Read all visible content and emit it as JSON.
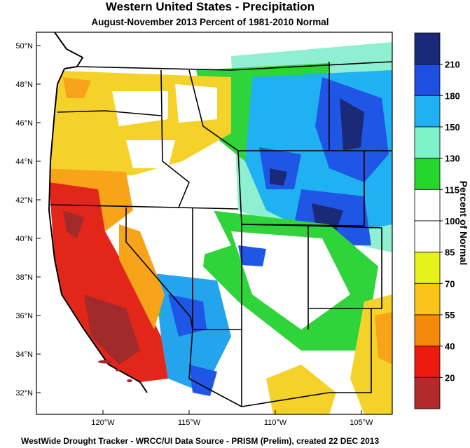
{
  "title": "Western United States - Precipitation",
  "subtitle": "August-November 2013  Percent of 1981-2010 Normal",
  "footer": "WestWide Drought Tracker - WRCC/UI  Data Source - PRISM (Prelim), created 22 DEC 2013",
  "map": {
    "lat_ticks": [
      "50°N",
      "48°N",
      "46°N",
      "44°N",
      "42°N",
      "40°N",
      "38°N",
      "36°N",
      "34°N",
      "32°N"
    ],
    "lon_ticks": [
      "120°W",
      "115°W",
      "110°W",
      "105°W"
    ]
  },
  "colorbar": {
    "title": "Percent of Normal",
    "labels": [
      "210",
      "180",
      "150",
      "130",
      "115",
      "100",
      "85",
      "70",
      "55",
      "40",
      "20"
    ],
    "colors": [
      "#1b2a78",
      "#1f4fe0",
      "#1fb1f2",
      "#7ef2c8",
      "#27d62b",
      "#ffffff",
      "#ffffff",
      "#e6f21a",
      "#f9c51a",
      "#f58a0a",
      "#ec1b10",
      "#b22a2a"
    ]
  },
  "region_colors": {
    "pnw_dry": "#f5d22a",
    "california": "#e2261a",
    "socal_dark": "#a12a2a",
    "great_basin": "#ffffff",
    "rockies_wet": "#2056e6",
    "southwest_wet": "#25a4ee",
    "plains": "#1fb1f2",
    "green": "#2fd33a",
    "aqua": "#8ef0d0",
    "orange": "#f7a41a"
  }
}
